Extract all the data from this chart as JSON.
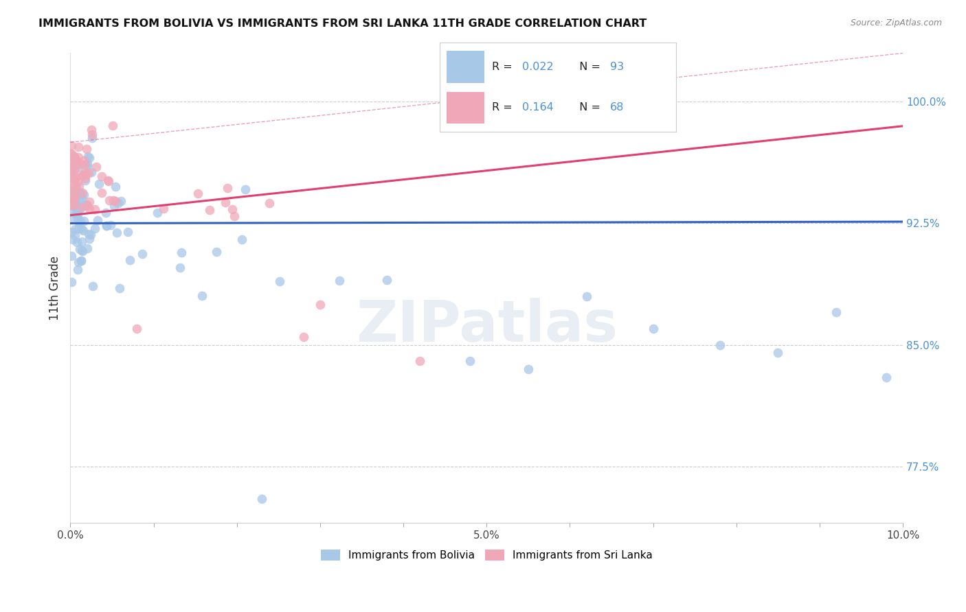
{
  "title": "IMMIGRANTS FROM BOLIVIA VS IMMIGRANTS FROM SRI LANKA 11TH GRADE CORRELATION CHART",
  "source": "Source: ZipAtlas.com",
  "ylabel": "11th Grade",
  "xlim": [
    0.0,
    10.0
  ],
  "ylim": [
    74.0,
    103.0
  ],
  "yticks": [
    77.5,
    85.0,
    92.5,
    100.0
  ],
  "bolivia_color": "#a8c8e8",
  "srilanka_color": "#f0a8b8",
  "bolivia_line_color": "#3060c0",
  "srilanka_line_color": "#e04070",
  "bolivia_R": 0.022,
  "bolivia_N": 93,
  "srilanka_R": 0.164,
  "srilanka_N": 68,
  "background_color": "#ffffff",
  "grid_color": "#cccccc",
  "watermark": "ZIPatlas",
  "legend_color": "#4a90d9"
}
